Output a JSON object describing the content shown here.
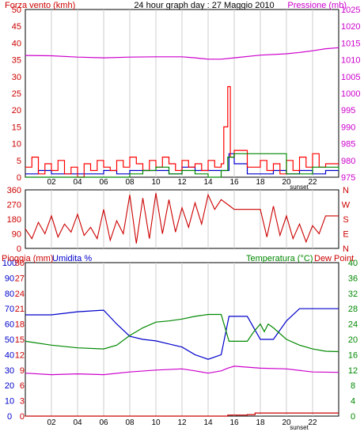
{
  "chart_data": [
    {
      "type": "line",
      "title": "24 hour graph day : 27 Maggio 2010",
      "left_axis_label": "Forza vento (kmh)",
      "right_axis_label": "Pressione (mb)",
      "x_ticks": [
        "02",
        "04",
        "06",
        "08",
        "10",
        "12",
        "14",
        "16",
        "18",
        "20",
        "22"
      ],
      "x_note": "sunset",
      "left_ticks": [
        "0",
        "5",
        "10",
        "15",
        "20",
        "25",
        "30",
        "35",
        "40",
        "45",
        "50"
      ],
      "right_ticks": [
        "975",
        "980",
        "985",
        "990",
        "995",
        "1000",
        "1005",
        "1010",
        "1015",
        "1020",
        "1025"
      ],
      "ylim_left": [
        0,
        50
      ],
      "ylim_right": [
        975,
        1025
      ],
      "colors": {
        "gust": "#ff0000",
        "speed": "#0000cc",
        "avg": "#008800",
        "pressure": "#cc00cc",
        "left_axis": "#cc0000",
        "right_axis": "#cc00cc"
      },
      "series": [
        {
          "key": "pressure",
          "axis": "right",
          "x": [
            0,
            2,
            4,
            6,
            8,
            10,
            12,
            13,
            14,
            15,
            16,
            18,
            20,
            21,
            22,
            23,
            24
          ],
          "y": [
            1011.3,
            1011.2,
            1010.8,
            1010.6,
            1010.8,
            1010.9,
            1010.9,
            1010.6,
            1010.2,
            1010.2,
            1010.6,
            1011.4,
            1011.8,
            1012.2,
            1012.7,
            1013.3,
            1013.6
          ]
        },
        {
          "key": "speed",
          "axis": "left",
          "x": [
            0,
            1,
            2,
            3,
            4,
            5,
            6,
            7,
            8,
            9,
            10,
            11,
            12,
            13,
            14,
            15,
            15.6,
            16,
            17,
            18,
            19,
            20,
            21,
            22,
            23,
            24
          ],
          "y": [
            1,
            2,
            1,
            1,
            1,
            1,
            2,
            1,
            2,
            2,
            2,
            1,
            3,
            2,
            2,
            2,
            7,
            4,
            1,
            1,
            2,
            1,
            2,
            1,
            2,
            2
          ]
        },
        {
          "key": "gust",
          "axis": "left",
          "x": [
            0,
            0.5,
            1,
            1.5,
            2,
            2.5,
            3,
            3.5,
            4,
            4.5,
            5,
            5.5,
            6,
            6.5,
            7,
            7.5,
            8,
            8.5,
            9,
            9.5,
            10,
            10.5,
            11,
            11.5,
            12,
            12.5,
            13,
            13.5,
            14,
            14.5,
            15,
            15.2,
            15.5,
            15.7,
            16,
            17,
            18,
            18.5,
            19,
            19.5,
            20,
            20.5,
            21,
            21.5,
            22,
            22.5,
            23,
            24
          ],
          "y": [
            3,
            6,
            1,
            4,
            2,
            5,
            1,
            3,
            0,
            4,
            2,
            5,
            3,
            2,
            5,
            3,
            6,
            4,
            2,
            5,
            3,
            6,
            4,
            2,
            5,
            3,
            4,
            2,
            5,
            3,
            4,
            15,
            27,
            6,
            8,
            3,
            5,
            2,
            4,
            1,
            5,
            2,
            6,
            3,
            7,
            3,
            4,
            4
          ]
        },
        {
          "key": "avg",
          "axis": "left",
          "x": [
            0,
            2,
            4,
            6,
            8,
            9,
            10,
            11,
            12,
            13,
            14,
            15,
            15.5,
            16,
            18,
            20,
            22,
            24
          ],
          "y": [
            0,
            0,
            0,
            0,
            1,
            2,
            3,
            1,
            2,
            1,
            0,
            2,
            6,
            7,
            7,
            1,
            3,
            2
          ]
        }
      ]
    },
    {
      "type": "line",
      "left_ticks": [
        "0",
        "90",
        "180",
        "270",
        "360"
      ],
      "right_ticks": [
        "N",
        "E",
        "S",
        "W",
        "N"
      ],
      "ylim": [
        0,
        360
      ],
      "colors": {
        "direction": "#cc0000"
      },
      "series": [
        {
          "key": "direction",
          "x": [
            0,
            0.5,
            1,
            1.5,
            2,
            2.5,
            3,
            3.5,
            4,
            4.5,
            5,
            5.5,
            6,
            6.5,
            7,
            7.5,
            8,
            8.5,
            9,
            9.5,
            10,
            10.5,
            11,
            11.5,
            12,
            12.5,
            13,
            13.5,
            14,
            14.5,
            15,
            15.5,
            16,
            17,
            18,
            18.5,
            19,
            19.5,
            20,
            20.5,
            21,
            21.5,
            22,
            22.5,
            23,
            24
          ],
          "y": [
            120,
            60,
            160,
            90,
            200,
            70,
            150,
            100,
            210,
            80,
            130,
            60,
            240,
            50,
            170,
            90,
            330,
            30,
            310,
            60,
            340,
            90,
            300,
            100,
            250,
            130,
            280,
            150,
            330,
            240,
            300,
            270,
            240,
            240,
            240,
            70,
            260,
            80,
            200,
            60,
            150,
            40,
            140,
            90,
            200,
            200
          ]
        }
      ]
    },
    {
      "type": "line",
      "left_axis_label_rain": "Pioggia (mm)",
      "left_axis_label_hum": "Umidita %",
      "right_axis_label_temp": "Temperatura (°C)",
      "right_axis_label_dew": "Dew Point",
      "x_ticks": [
        "02",
        "04",
        "06",
        "08",
        "10",
        "12",
        "14",
        "16",
        "18",
        "20",
        "22"
      ],
      "x_note": "sunset",
      "humidity_ticks": [
        "0",
        "10",
        "20",
        "30",
        "40",
        "50",
        "60",
        "70",
        "80",
        "90",
        "100"
      ],
      "rain_ticks": [
        "0",
        "3",
        "6",
        "9",
        "12",
        "15",
        "18",
        "21",
        "24",
        "27",
        "30"
      ],
      "temp_ticks": [
        "0",
        "4",
        "8",
        "12",
        "16",
        "20",
        "24",
        "28",
        "32",
        "36",
        "40"
      ],
      "colors": {
        "humidity": "#0000cc",
        "temperature": "#008800",
        "dewpoint": "#cc00cc",
        "rain": "#cc0000",
        "rain_axis": "#cc0000",
        "hum_axis": "#0000cc",
        "temp_axis": "#008800"
      },
      "series": [
        {
          "key": "humidity",
          "axis": "humidity",
          "x": [
            0,
            2,
            4,
            6,
            7,
            8,
            9,
            10,
            11,
            12,
            13,
            14,
            15,
            15.6,
            16,
            17,
            18,
            19,
            20,
            21,
            22,
            23,
            24
          ],
          "y": [
            66,
            66,
            68,
            69,
            60,
            52,
            50,
            49,
            47,
            45,
            40,
            37,
            40,
            65,
            65,
            65,
            50,
            50,
            62,
            70,
            70,
            70,
            70
          ]
        },
        {
          "key": "temperature",
          "axis": "temp",
          "x": [
            0,
            2,
            4,
            6,
            7,
            8,
            9,
            10,
            11,
            12,
            13,
            14,
            15,
            15.6,
            16,
            17,
            17.5,
            18,
            18.3,
            18.6,
            19,
            20,
            21,
            22,
            23,
            24
          ],
          "y": [
            19.5,
            18.5,
            17.8,
            17.5,
            18.5,
            21,
            23,
            24.5,
            24.8,
            25.3,
            26,
            26.5,
            26.5,
            19.5,
            19.5,
            19.5,
            22,
            24,
            22,
            24,
            23,
            20,
            18.5,
            17.5,
            16.9,
            16.8
          ]
        },
        {
          "key": "dewpoint",
          "axis": "temp",
          "x": [
            0,
            2,
            4,
            6,
            8,
            10,
            12,
            13,
            14,
            15,
            15.5,
            16,
            18,
            20,
            22,
            24
          ],
          "y": [
            11.2,
            10.8,
            11,
            10.8,
            11.5,
            12,
            12.3,
            11.8,
            11.2,
            11.8,
            12.5,
            13,
            12.5,
            12.3,
            11.5,
            11.4
          ]
        },
        {
          "key": "rain",
          "axis": "rain",
          "x": [
            0,
            14,
            15.5,
            17,
            17.6,
            24
          ],
          "y": [
            0,
            0,
            0.2,
            0.3,
            0.6,
            0.6
          ]
        }
      ]
    }
  ]
}
